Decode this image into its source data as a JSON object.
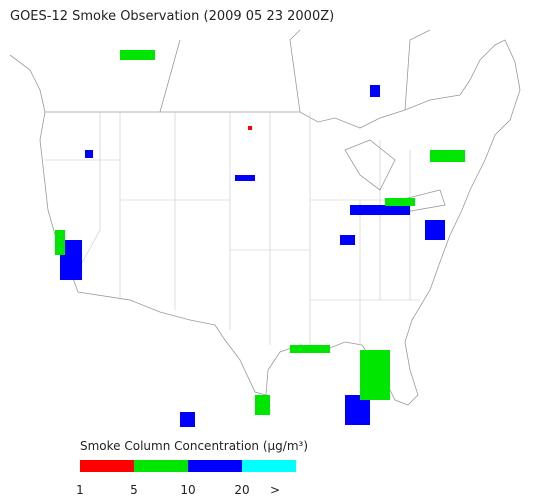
{
  "title": "GOES-12 Smoke Observation (2009 05 23  2000Z)",
  "legend": {
    "title": "Smoke Column Concentration (μg/m³)",
    "colors": [
      "#ff0000",
      "#00e600",
      "#0000ff",
      "#00ffff"
    ],
    "labels": [
      "1",
      "5",
      "10",
      "20",
      ">"
    ]
  }
}
